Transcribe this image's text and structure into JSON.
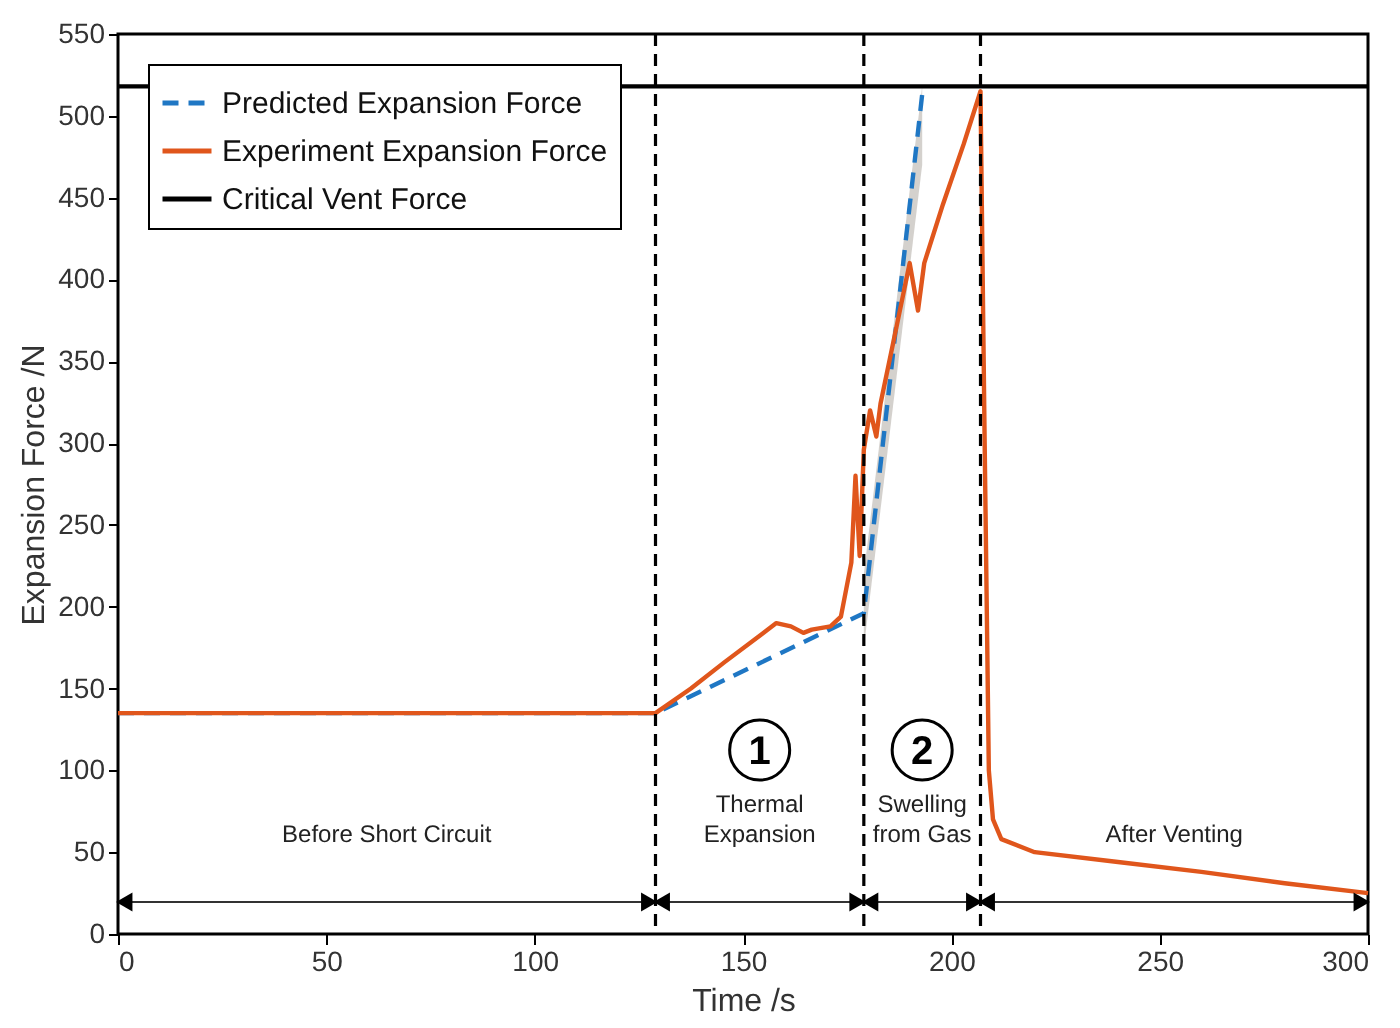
{
  "chart_data": {
    "type": "line",
    "xlabel": "Time /s",
    "ylabel": "Expansion Force /N",
    "xlim": [
      0,
      300
    ],
    "xticks": [
      0,
      50,
      100,
      150,
      200,
      250,
      300
    ],
    "ylim": [
      0,
      550
    ],
    "yticks": [
      0,
      50,
      100,
      150,
      200,
      250,
      300,
      350,
      400,
      450,
      500,
      550
    ],
    "grid": false,
    "legend": "top left",
    "marker": "none",
    "series": [
      {
        "name": "Predicted Expansion Force",
        "color": "#1f77c4",
        "line_style": "dashed",
        "x": [
          0,
          129,
          179,
          193
        ],
        "values": [
          135,
          135,
          196,
          513
        ],
        "lower": [
          null,
          null,
          175,
          470
        ],
        "upper": [
          null,
          null,
          220,
          518
        ]
      },
      {
        "name": "Experiment Expansion Force",
        "color": "#e0561c",
        "line_style": "solid",
        "x": [
          0,
          129,
          137.5,
          145.5,
          158,
          161.5,
          164.5,
          166.5,
          171,
          173.5,
          176,
          177,
          178,
          179,
          180.5,
          182,
          183,
          187,
          190,
          192,
          193.5,
          198,
          203,
          207,
          208,
          209,
          210,
          212,
          220,
          240,
          260,
          280,
          300
        ],
        "values": [
          135,
          135,
          150,
          166,
          190,
          188,
          184,
          186,
          188,
          194,
          227,
          280,
          231,
          296,
          320,
          304,
          324,
          373,
          410,
          381,
          410,
          446,
          483,
          515,
          300,
          100,
          70,
          58,
          50,
          44,
          38,
          31,
          25
        ]
      },
      {
        "name": "Critical Vent Force",
        "color": "#000000",
        "line_style": "solid",
        "x": [
          0,
          300
        ],
        "values": [
          518,
          518
        ]
      }
    ],
    "ref_lines": [
      {
        "axis": "x",
        "value": 129
      },
      {
        "axis": "x",
        "value": 179
      },
      {
        "axis": "x",
        "value": 207
      }
    ],
    "annotations": [
      "Before Short Circuit",
      "1",
      "Thermal Expansion",
      "2",
      "Swelling from Gas",
      "After Venting"
    ]
  }
}
